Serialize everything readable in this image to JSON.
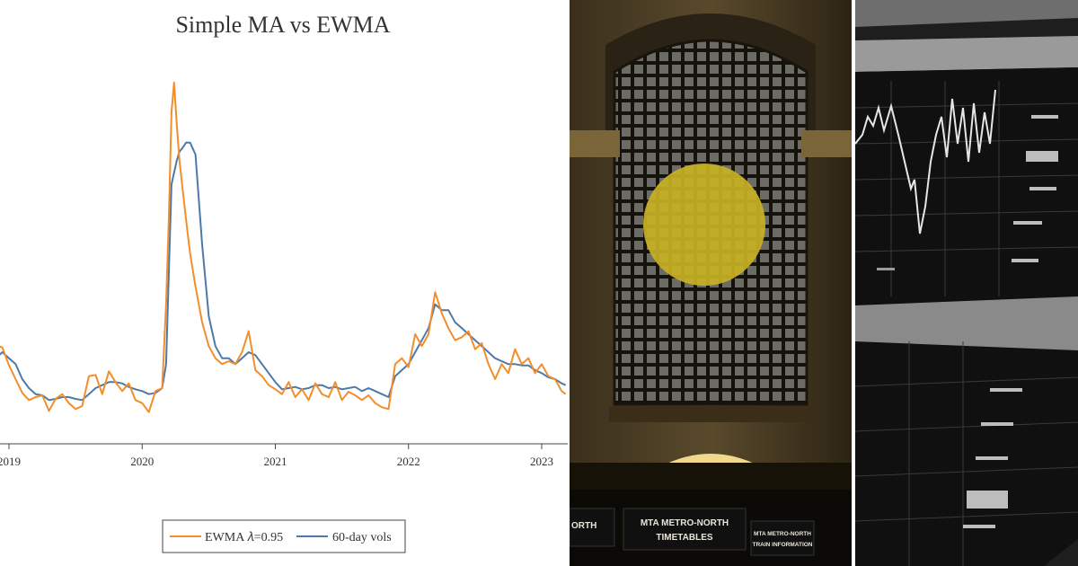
{
  "chart_data": {
    "type": "line",
    "title": "Simple MA vs EWMA",
    "xlabel": "",
    "ylabel": "",
    "x_ticks": [
      "2019",
      "2020",
      "2021",
      "2022",
      "2023"
    ],
    "ylim": [
      0,
      0.6
    ],
    "grid": false,
    "legend_position": "bottom-center",
    "series": [
      {
        "name": "EWMA 𝜆=0.95",
        "color": "#f28e2b",
        "x": [
          2018.85,
          2018.9,
          2018.95,
          2019.0,
          2019.05,
          2019.1,
          2019.15,
          2019.2,
          2019.25,
          2019.3,
          2019.35,
          2019.4,
          2019.45,
          2019.5,
          2019.55,
          2019.6,
          2019.65,
          2019.7,
          2019.75,
          2019.8,
          2019.85,
          2019.9,
          2019.95,
          2020.0,
          2020.05,
          2020.1,
          2020.15,
          2020.18,
          2020.2,
          2020.22,
          2020.24,
          2020.26,
          2020.28,
          2020.3,
          2020.33,
          2020.36,
          2020.4,
          2020.45,
          2020.5,
          2020.55,
          2020.6,
          2020.65,
          2020.7,
          2020.75,
          2020.8,
          2020.85,
          2020.9,
          2020.95,
          2021.0,
          2021.05,
          2021.1,
          2021.15,
          2021.2,
          2021.25,
          2021.3,
          2021.35,
          2021.4,
          2021.45,
          2021.5,
          2021.55,
          2021.6,
          2021.65,
          2021.7,
          2021.75,
          2021.8,
          2021.85,
          2021.9,
          2021.95,
          2022.0,
          2022.05,
          2022.1,
          2022.15,
          2022.2,
          2022.25,
          2022.3,
          2022.35,
          2022.4,
          2022.45,
          2022.5,
          2022.55,
          2022.6,
          2022.65,
          2022.7,
          2022.75,
          2022.8,
          2022.85,
          2022.9,
          2022.95,
          2023.0,
          2023.05,
          2023.1,
          2023.15,
          2023.18
        ],
        "values": [
          0.118,
          0.132,
          0.128,
          0.098,
          0.075,
          0.052,
          0.04,
          0.045,
          0.048,
          0.022,
          0.042,
          0.05,
          0.035,
          0.025,
          0.03,
          0.08,
          0.082,
          0.05,
          0.088,
          0.07,
          0.055,
          0.068,
          0.04,
          0.035,
          0.02,
          0.055,
          0.06,
          0.2,
          0.34,
          0.52,
          0.57,
          0.5,
          0.44,
          0.4,
          0.34,
          0.285,
          0.23,
          0.17,
          0.13,
          0.11,
          0.1,
          0.105,
          0.1,
          0.12,
          0.155,
          0.09,
          0.08,
          0.065,
          0.058,
          0.05,
          0.07,
          0.045,
          0.058,
          0.04,
          0.068,
          0.05,
          0.045,
          0.07,
          0.04,
          0.054,
          0.048,
          0.04,
          0.048,
          0.035,
          0.028,
          0.025,
          0.1,
          0.11,
          0.095,
          0.15,
          0.13,
          0.15,
          0.22,
          0.185,
          0.16,
          0.14,
          0.145,
          0.155,
          0.125,
          0.135,
          0.1,
          0.075,
          0.1,
          0.085,
          0.125,
          0.1,
          0.11,
          0.085,
          0.1,
          0.08,
          0.075,
          0.055,
          0.05
        ]
      },
      {
        "name": "60-day vols",
        "color": "#4e79a7",
        "x": [
          2018.85,
          2018.9,
          2018.95,
          2019.0,
          2019.05,
          2019.1,
          2019.15,
          2019.2,
          2019.25,
          2019.3,
          2019.35,
          2019.4,
          2019.45,
          2019.5,
          2019.55,
          2019.6,
          2019.65,
          2019.7,
          2019.75,
          2019.8,
          2019.85,
          2019.9,
          2019.95,
          2020.0,
          2020.05,
          2020.1,
          2020.15,
          2020.18,
          2020.2,
          2020.22,
          2020.24,
          2020.26,
          2020.28,
          2020.3,
          2020.33,
          2020.36,
          2020.4,
          2020.45,
          2020.5,
          2020.55,
          2020.6,
          2020.65,
          2020.7,
          2020.75,
          2020.8,
          2020.85,
          2020.9,
          2020.95,
          2021.0,
          2021.05,
          2021.1,
          2021.15,
          2021.2,
          2021.25,
          2021.3,
          2021.35,
          2021.4,
          2021.45,
          2021.5,
          2021.55,
          2021.6,
          2021.65,
          2021.7,
          2021.75,
          2021.8,
          2021.85,
          2021.9,
          2021.95,
          2022.0,
          2022.05,
          2022.1,
          2022.15,
          2022.2,
          2022.25,
          2022.3,
          2022.35,
          2022.4,
          2022.45,
          2022.5,
          2022.55,
          2022.6,
          2022.65,
          2022.7,
          2022.75,
          2022.8,
          2022.85,
          2022.9,
          2022.95,
          2023.0,
          2023.05,
          2023.1,
          2023.15,
          2023.18
        ],
        "values": [
          0.1,
          0.11,
          0.12,
          0.11,
          0.1,
          0.075,
          0.06,
          0.05,
          0.048,
          0.04,
          0.042,
          0.045,
          0.045,
          0.042,
          0.04,
          0.05,
          0.06,
          0.065,
          0.07,
          0.07,
          0.068,
          0.062,
          0.058,
          0.055,
          0.05,
          0.052,
          0.06,
          0.1,
          0.25,
          0.4,
          0.42,
          0.44,
          0.455,
          0.46,
          0.47,
          0.47,
          0.45,
          0.3,
          0.18,
          0.13,
          0.11,
          0.11,
          0.1,
          0.11,
          0.12,
          0.115,
          0.1,
          0.085,
          0.07,
          0.058,
          0.06,
          0.062,
          0.058,
          0.06,
          0.065,
          0.065,
          0.06,
          0.062,
          0.058,
          0.06,
          0.062,
          0.055,
          0.06,
          0.055,
          0.05,
          0.045,
          0.08,
          0.09,
          0.1,
          0.12,
          0.14,
          0.16,
          0.2,
          0.19,
          0.19,
          0.17,
          0.16,
          0.15,
          0.14,
          0.13,
          0.12,
          0.11,
          0.105,
          0.1,
          0.1,
          0.098,
          0.098,
          0.09,
          0.085,
          0.078,
          0.075,
          0.068,
          0.065
        ]
      }
    ]
  },
  "photos": {
    "station": {
      "sign_left": "ORTH",
      "sign_center_line1": "MTA METRO-NORTH",
      "sign_center_line2": "TIMETABLES",
      "sign_right_line1": "MTA METRO-NORTH",
      "sign_right_line2": "TRAIN INFORMATION"
    }
  }
}
